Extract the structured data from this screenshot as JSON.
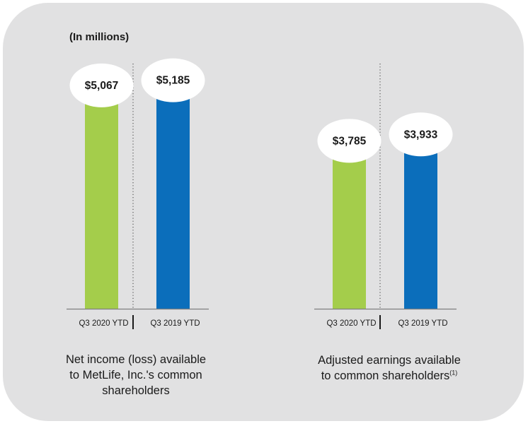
{
  "units_label": "(In millions)",
  "colors": {
    "green": "#a4cd4b",
    "blue": "#0b6ebb",
    "panel": "#e1e1e2",
    "axis": "#7f7f7f",
    "bubble": "#ffffff"
  },
  "chart_data": [
    {
      "type": "bar",
      "title": "Net income (loss) available to MetLife, Inc.'s common shareholders",
      "categories": [
        "Q3 2020 YTD",
        "Q3 2019 YTD"
      ],
      "values": [
        5067,
        5185
      ],
      "data_labels": [
        "$5,067",
        "$5,185"
      ],
      "ylim": [
        0,
        5800
      ]
    },
    {
      "type": "bar",
      "title": "Adjusted earnings available to common shareholders",
      "title_note": "(1)",
      "categories": [
        "Q3 2020 YTD",
        "Q3 2019 YTD"
      ],
      "values": [
        3785,
        3933
      ],
      "data_labels": [
        "$3,785",
        "$3,933"
      ],
      "ylim": [
        0,
        5800
      ]
    }
  ],
  "captions": [
    {
      "lines": [
        "Net income (loss) available",
        "to MetLife, Inc.'s common",
        "shareholders"
      ]
    },
    {
      "lines": [
        "Adjusted earnings available",
        "to common shareholders"
      ],
      "note": "(1)"
    }
  ]
}
